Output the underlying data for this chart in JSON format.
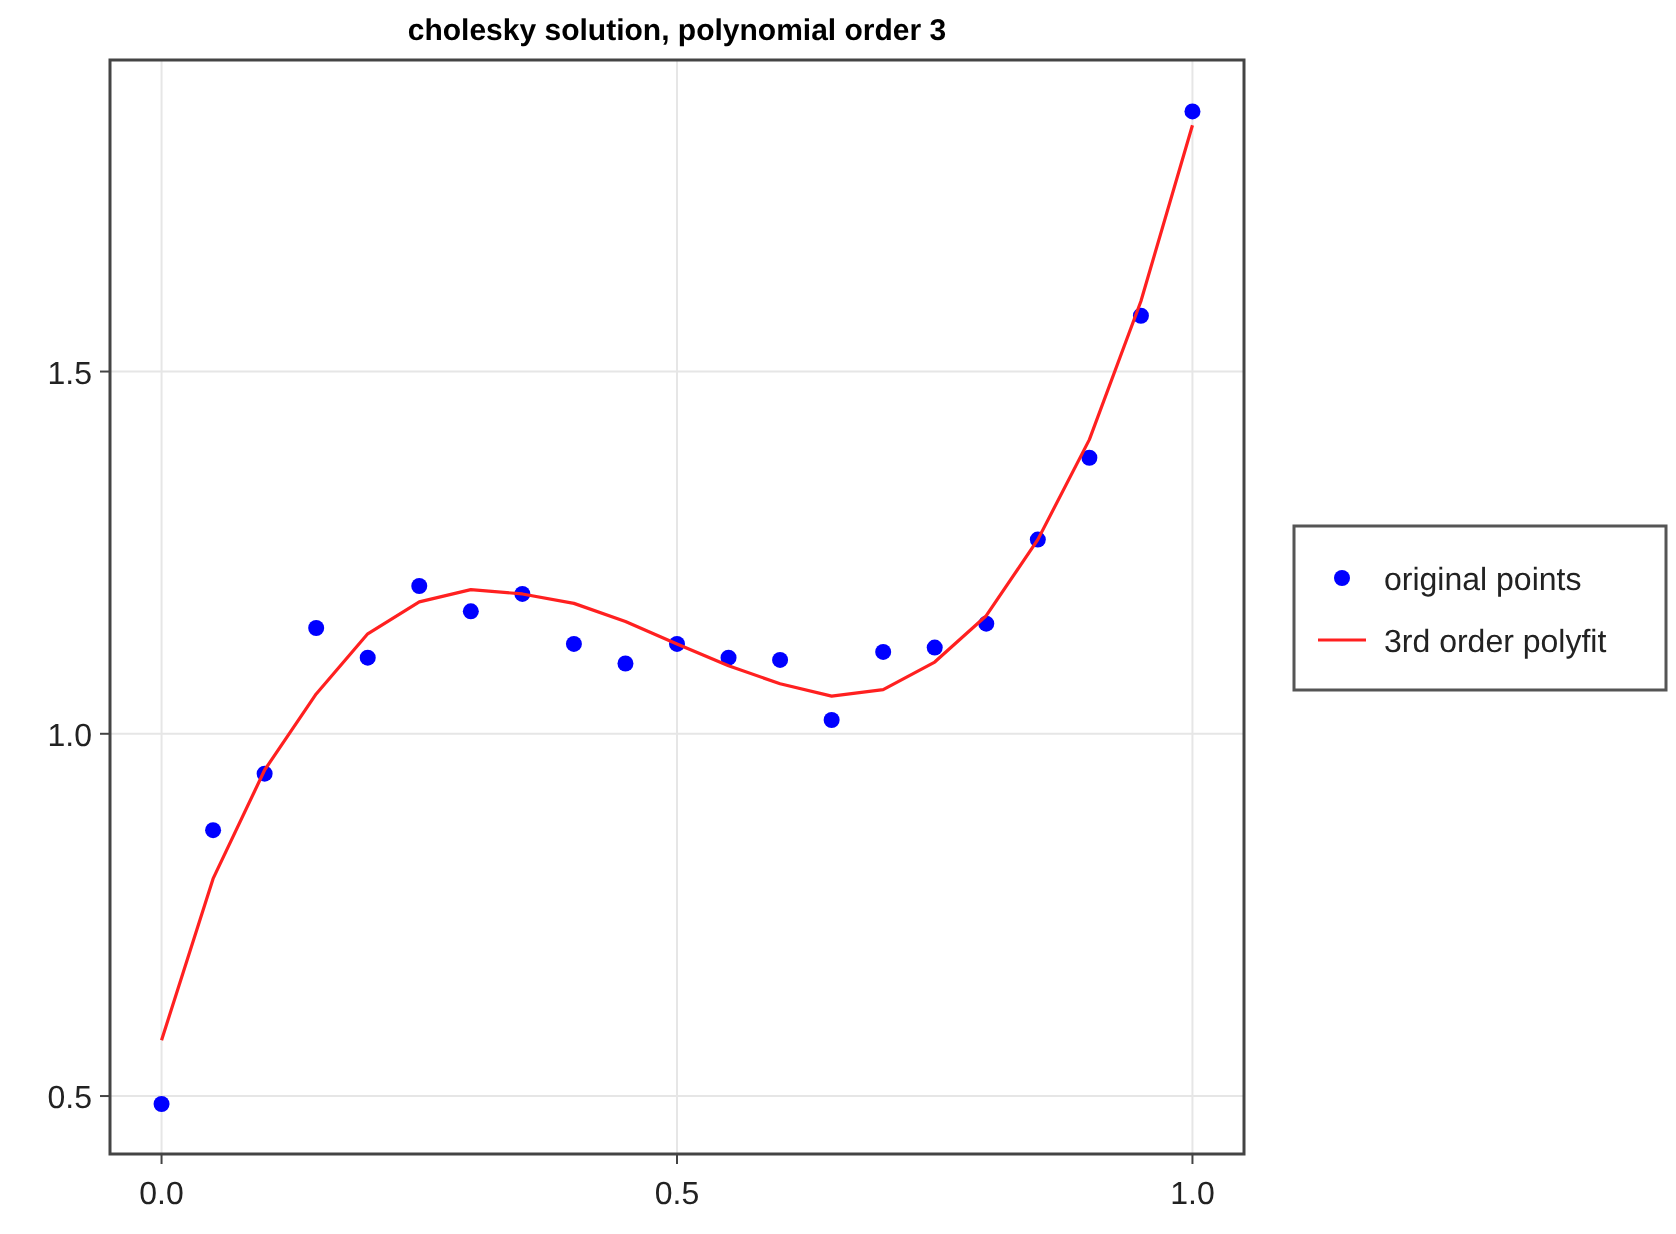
{
  "chart_data": {
    "type": "scatter",
    "title": "cholesky solution, polynomial order 3",
    "x": [
      0,
      0.05,
      0.1,
      0.15,
      0.2,
      0.25,
      0.3,
      0.35,
      0.4,
      0.45,
      0.5,
      0.55,
      0.6,
      0.65,
      0.7,
      0.75,
      0.8,
      0.85,
      0.9,
      0.95,
      1.0
    ],
    "series": [
      {
        "name": "original points",
        "color": "#0000ff",
        "marker": "circle",
        "values": [
          0.489,
          0.867,
          0.945,
          1.146,
          1.105,
          1.204,
          1.169,
          1.193,
          1.124,
          1.097,
          1.124,
          1.105,
          1.102,
          1.019,
          1.113,
          1.119,
          1.152,
          1.268,
          1.381,
          1.577,
          1.859
        ]
      },
      {
        "name": "3rd order polyfit",
        "type": "line",
        "color": "#ff2020",
        "marker": "none",
        "values": [
          0.577,
          0.8,
          0.95,
          1.055,
          1.138,
          1.182,
          1.199,
          1.193,
          1.18,
          1.155,
          1.124,
          1.094,
          1.069,
          1.052,
          1.061,
          1.099,
          1.163,
          1.268,
          1.406,
          1.597,
          1.84
        ]
      }
    ],
    "xlim": [
      -0.05,
      1.05
    ],
    "xticks": [
      {
        "value": 0,
        "label": "0.0"
      },
      0.5,
      {
        "value": 1,
        "label": "1.0"
      }
    ],
    "ylim": [
      0.42,
      1.93
    ],
    "yticks": [
      0.5,
      {
        "value": 1,
        "label": "1.0"
      },
      1.5
    ],
    "grid": true,
    "legend": "right"
  }
}
